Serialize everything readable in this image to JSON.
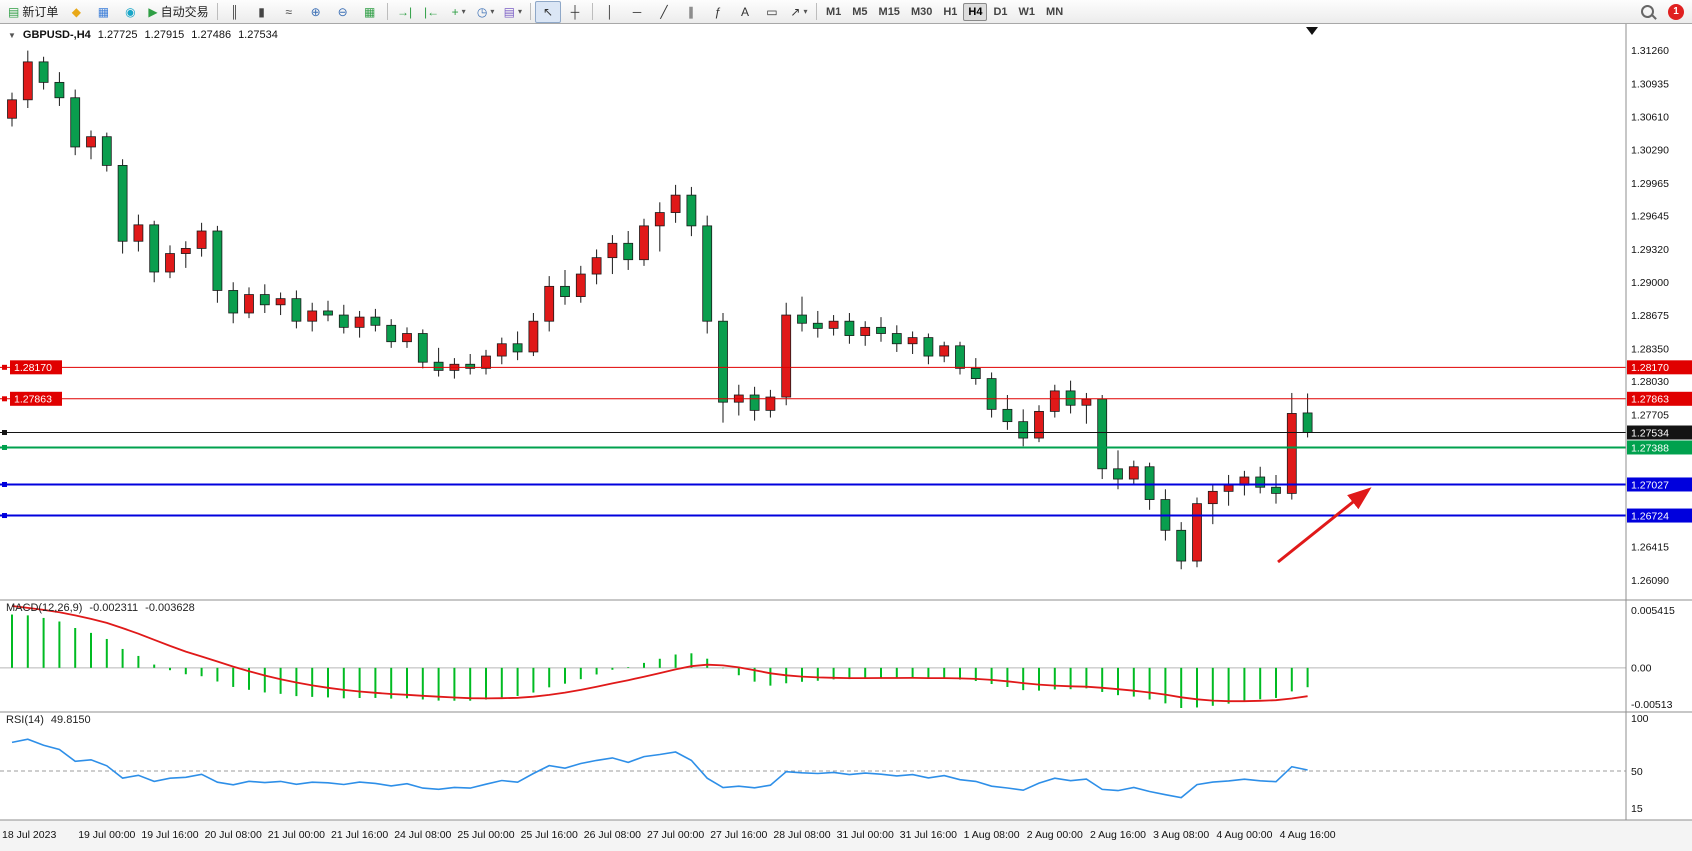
{
  "toolbar": {
    "caret_glyph": "▾",
    "notification_count": "1",
    "active_timeframe": "H4",
    "timeframes": [
      "M1",
      "M5",
      "M15",
      "M30",
      "H1",
      "H4",
      "D1",
      "W1",
      "MN"
    ],
    "items": [
      {
        "t": "b",
        "name": "new-order-button",
        "glyph": "▤",
        "gc": "#2e9e44",
        "label": "新订单"
      },
      {
        "t": "b",
        "name": "market-depth-button",
        "glyph": "◆",
        "gc": "#e8a817"
      },
      {
        "t": "b",
        "name": "charts-window-button",
        "glyph": "▦",
        "gc": "#3b7dd8"
      },
      {
        "t": "b",
        "name": "community-button",
        "glyph": "◉",
        "gc": "#18a6c8"
      },
      {
        "t": "b",
        "name": "autotrading-button",
        "glyph": "▶",
        "gc": "#2e9e44",
        "label": "自动交易"
      },
      {
        "t": "s"
      },
      {
        "t": "b",
        "name": "bars-mode-button",
        "glyph": "║",
        "gc": "#444"
      },
      {
        "t": "b",
        "name": "candles-mode-button",
        "glyph": "▮",
        "gc": "#444"
      },
      {
        "t": "b",
        "name": "line-mode-button",
        "glyph": "≈",
        "gc": "#444"
      },
      {
        "t": "b",
        "name": "zoom-in-button",
        "glyph": "⊕",
        "gc": "#3b6fb5"
      },
      {
        "t": "b",
        "name": "zoom-out-button",
        "glyph": "⊖",
        "gc": "#3b6fb5"
      },
      {
        "t": "b",
        "name": "tile-windows-button",
        "glyph": "▦",
        "gc": "#2e9e44"
      },
      {
        "t": "s"
      },
      {
        "t": "b",
        "name": "auto-scroll-button",
        "glyph": "→|",
        "gc": "#2e9e44"
      },
      {
        "t": "b",
        "name": "chart-shift-button",
        "glyph": "|←",
        "gc": "#2e9e44"
      },
      {
        "t": "b",
        "name": "indicators-button",
        "glyph": "+",
        "gc": "#2e9e44",
        "caret": true
      },
      {
        "t": "b",
        "name": "periods-button",
        "glyph": "◷",
        "gc": "#3b6fb5",
        "caret": true
      },
      {
        "t": "b",
        "name": "templates-button",
        "glyph": "▤",
        "gc": "#7a5cc5",
        "caret": true
      },
      {
        "t": "s"
      },
      {
        "t": "b",
        "name": "cursor-button",
        "glyph": "↖",
        "gc": "#333",
        "active": true
      },
      {
        "t": "b",
        "name": "crosshair-button",
        "glyph": "┼",
        "gc": "#333"
      },
      {
        "t": "s"
      },
      {
        "t": "b",
        "name": "vertical-line-button",
        "glyph": "│",
        "gc": "#333"
      },
      {
        "t": "b",
        "name": "horizontal-line-button",
        "glyph": "─",
        "gc": "#333"
      },
      {
        "t": "b",
        "name": "trendline-button",
        "glyph": "╱",
        "gc": "#333"
      },
      {
        "t": "b",
        "name": "channel-button",
        "glyph": "∥",
        "gc": "#333"
      },
      {
        "t": "b",
        "name": "fibonacci-button",
        "glyph": "ƒ",
        "gc": "#333"
      },
      {
        "t": "b",
        "name": "text-button",
        "glyph": "A",
        "gc": "#333"
      },
      {
        "t": "b",
        "name": "label-button",
        "glyph": "▭",
        "gc": "#333"
      },
      {
        "t": "b",
        "name": "arrows-button",
        "glyph": "↗",
        "gc": "#333",
        "caret": true
      },
      {
        "t": "s"
      }
    ]
  },
  "header": {
    "one_click_icon": "▼",
    "symbol": "GBPUSD-,H4",
    "open": "1.27725",
    "high": "1.27915",
    "low": "1.27486",
    "close": "1.27534"
  },
  "price_axis": {
    "ticks": [
      "1.31260",
      "1.30935",
      "1.30610",
      "1.30290",
      "1.29965",
      "1.29645",
      "1.29320",
      "1.29000",
      "1.28675",
      "1.28350",
      "1.28030",
      "1.27705",
      "1.26415",
      "1.26090"
    ]
  },
  "objects": {
    "hlines": [
      {
        "price": 1.2817,
        "label": "1.28170",
        "color": "#e00000",
        "width": 1,
        "left_badge": true
      },
      {
        "price": 1.27863,
        "label": "1.27863",
        "color": "#e00000",
        "width": 1,
        "left_badge": true
      },
      {
        "price": 1.27534,
        "label": "1.27534",
        "color": "#141414",
        "width": 1,
        "left_badge": false
      },
      {
        "price": 1.27388,
        "label": "1.27388",
        "color": "#00a14e",
        "width": 2,
        "left_badge": false
      },
      {
        "price": 1.27027,
        "label": "1.27027",
        "color": "#0000dd",
        "width": 2,
        "left_badge": false
      },
      {
        "price": 1.26724,
        "label": "1.26724",
        "color": "#0000dd",
        "width": 2,
        "left_badge": false
      }
    ],
    "arrow": {
      "from": [
        1278,
        538
      ],
      "to": [
        1368,
        466
      ],
      "color": "#e01919"
    }
  },
  "macd": {
    "title": "MACD(12,26,9)",
    "value_main": "-0.002311",
    "value_signal": "-0.003628",
    "axis_top": "0.005415",
    "axis_zero": "0.00",
    "axis_bottom": "-0.00513",
    "fast": 12,
    "slow": 26,
    "signal": 9,
    "hist_color": "#00bb22",
    "signal_color": "#e01919"
  },
  "rsi": {
    "title": "RSI(14)",
    "value": "49.8150",
    "period": 14,
    "line_color": "#2e8fe8",
    "level": 50,
    "axis": [
      {
        "v": 100,
        "label": "100"
      },
      {
        "v": 50,
        "label": "50"
      },
      {
        "v": 15,
        "label": "15"
      }
    ]
  },
  "chart_data": {
    "type": "candlestick",
    "symbol": "GBPUSD-",
    "timeframe": "H4",
    "bull_color": "#e01919",
    "bear_color": "#0a9e4e",
    "ohlc_current": {
      "open": 1.27725,
      "high": 1.27915,
      "low": 1.27486,
      "close": 1.27534
    },
    "pre_closes": [
      1.276,
      1.278,
      1.28,
      1.2825,
      1.285,
      1.2875,
      1.29,
      1.2925,
      1.295,
      1.2975,
      1.3,
      1.3025,
      1.305,
      1.308,
      1.31,
      1.312,
      1.3135,
      1.314,
      1.313,
      1.311,
      1.309,
      1.3075,
      1.3065,
      1.306
    ],
    "candles": [
      [
        1.306,
        1.3085,
        1.3052,
        1.3078
      ],
      [
        1.3078,
        1.3126,
        1.307,
        1.3115
      ],
      [
        1.3115,
        1.312,
        1.3088,
        1.3095
      ],
      [
        1.3095,
        1.3105,
        1.3072,
        1.308
      ],
      [
        1.308,
        1.3088,
        1.3024,
        1.3032
      ],
      [
        1.3032,
        1.3048,
        1.302,
        1.3042
      ],
      [
        1.3042,
        1.3046,
        1.3008,
        1.3014
      ],
      [
        1.3014,
        1.302,
        1.2928,
        1.294
      ],
      [
        1.294,
        1.2966,
        1.293,
        1.2956
      ],
      [
        1.2956,
        1.296,
        1.29,
        1.291
      ],
      [
        1.291,
        1.2936,
        1.2904,
        1.2928
      ],
      [
        1.2928,
        1.294,
        1.2914,
        1.2933
      ],
      [
        1.2933,
        1.2958,
        1.2925,
        1.295
      ],
      [
        1.295,
        1.2955,
        1.288,
        1.2892
      ],
      [
        1.2892,
        1.29,
        1.286,
        1.287
      ],
      [
        1.287,
        1.2895,
        1.2865,
        1.2888
      ],
      [
        1.2888,
        1.2898,
        1.287,
        1.2878
      ],
      [
        1.2878,
        1.289,
        1.2868,
        1.2884
      ],
      [
        1.2884,
        1.2892,
        1.2855,
        1.2862
      ],
      [
        1.2862,
        1.288,
        1.2852,
        1.2872
      ],
      [
        1.2872,
        1.2882,
        1.2862,
        1.2868
      ],
      [
        1.2868,
        1.2878,
        1.285,
        1.2856
      ],
      [
        1.2856,
        1.2872,
        1.2846,
        1.2866
      ],
      [
        1.2866,
        1.2874,
        1.2852,
        1.2858
      ],
      [
        1.2858,
        1.2864,
        1.2836,
        1.2842
      ],
      [
        1.2842,
        1.2856,
        1.2836,
        1.285
      ],
      [
        1.285,
        1.2854,
        1.2816,
        1.2822
      ],
      [
        1.2822,
        1.2836,
        1.2808,
        1.2814
      ],
      [
        1.2814,
        1.2826,
        1.2806,
        1.282
      ],
      [
        1.282,
        1.283,
        1.281,
        1.2816
      ],
      [
        1.2816,
        1.2834,
        1.281,
        1.2828
      ],
      [
        1.2828,
        1.2846,
        1.282,
        1.284
      ],
      [
        1.284,
        1.2852,
        1.2824,
        1.2832
      ],
      [
        1.2832,
        1.287,
        1.2828,
        1.2862
      ],
      [
        1.2862,
        1.2906,
        1.2852,
        1.2896
      ],
      [
        1.2896,
        1.2912,
        1.2878,
        1.2886
      ],
      [
        1.2886,
        1.2916,
        1.288,
        1.2908
      ],
      [
        1.2908,
        1.2932,
        1.2898,
        1.2924
      ],
      [
        1.2924,
        1.2946,
        1.2908,
        1.2938
      ],
      [
        1.2938,
        1.295,
        1.2912,
        1.2922
      ],
      [
        1.2922,
        1.2962,
        1.2916,
        1.2955
      ],
      [
        1.2955,
        1.2978,
        1.293,
        1.2968
      ],
      [
        1.2968,
        1.2995,
        1.2958,
        1.2985
      ],
      [
        1.2985,
        1.2993,
        1.2945,
        1.2955
      ],
      [
        1.2955,
        1.2965,
        1.285,
        1.2862
      ],
      [
        1.2862,
        1.287,
        1.2763,
        1.2783
      ],
      [
        1.2783,
        1.28,
        1.277,
        1.279
      ],
      [
        1.279,
        1.2798,
        1.2765,
        1.2775
      ],
      [
        1.2775,
        1.2795,
        1.2768,
        1.2788
      ],
      [
        1.2788,
        1.288,
        1.278,
        1.2868
      ],
      [
        1.2868,
        1.2886,
        1.2852,
        1.286
      ],
      [
        1.286,
        1.2872,
        1.2846,
        1.2855
      ],
      [
        1.2855,
        1.2868,
        1.2848,
        1.2862
      ],
      [
        1.2862,
        1.287,
        1.284,
        1.2848
      ],
      [
        1.2848,
        1.2862,
        1.2838,
        1.2856
      ],
      [
        1.2856,
        1.2866,
        1.2842,
        1.285
      ],
      [
        1.285,
        1.2858,
        1.2832,
        1.284
      ],
      [
        1.284,
        1.2852,
        1.283,
        1.2846
      ],
      [
        1.2846,
        1.285,
        1.282,
        1.2828
      ],
      [
        1.2828,
        1.2842,
        1.2822,
        1.2838
      ],
      [
        1.2838,
        1.2842,
        1.281,
        1.2816
      ],
      [
        1.2816,
        1.2826,
        1.28,
        1.2806
      ],
      [
        1.2806,
        1.2812,
        1.2768,
        1.2776
      ],
      [
        1.2776,
        1.279,
        1.2756,
        1.2764
      ],
      [
        1.2764,
        1.2776,
        1.274,
        1.2748
      ],
      [
        1.2748,
        1.278,
        1.2744,
        1.2774
      ],
      [
        1.2774,
        1.28,
        1.2768,
        1.2794
      ],
      [
        1.2794,
        1.2804,
        1.2772,
        1.278
      ],
      [
        1.278,
        1.2792,
        1.2762,
        1.2786
      ],
      [
        1.2786,
        1.279,
        1.2708,
        1.2718
      ],
      [
        1.2718,
        1.2736,
        1.2698,
        1.2708
      ],
      [
        1.2708,
        1.2726,
        1.2702,
        1.272
      ],
      [
        1.272,
        1.2724,
        1.2678,
        1.2688
      ],
      [
        1.2688,
        1.2698,
        1.2648,
        1.2658
      ],
      [
        1.2658,
        1.2666,
        1.262,
        1.2628
      ],
      [
        1.2628,
        1.269,
        1.2622,
        1.2684
      ],
      [
        1.2684,
        1.2702,
        1.2664,
        1.2696
      ],
      [
        1.2696,
        1.2712,
        1.2682,
        1.2702
      ],
      [
        1.2702,
        1.2716,
        1.2692,
        1.271
      ],
      [
        1.271,
        1.272,
        1.2694,
        1.27
      ],
      [
        1.27,
        1.2712,
        1.2684,
        1.2694
      ],
      [
        1.2694,
        1.2792,
        1.2688,
        1.2772
      ],
      [
        1.27725,
        1.27915,
        1.27486,
        1.27534
      ]
    ],
    "time_labels": [
      {
        "text": "18 Jul 2023",
        "i": 0
      },
      {
        "text": "19 Jul 00:00",
        "i": 6
      },
      {
        "text": "19 Jul 16:00",
        "i": 10
      },
      {
        "text": "20 Jul 08:00",
        "i": 14
      },
      {
        "text": "21 Jul 00:00",
        "i": 18
      },
      {
        "text": "21 Jul 16:00",
        "i": 22
      },
      {
        "text": "24 Jul 08:00",
        "i": 26
      },
      {
        "text": "25 Jul 00:00",
        "i": 30
      },
      {
        "text": "25 Jul 16:00",
        "i": 34
      },
      {
        "text": "26 Jul 08:00",
        "i": 38
      },
      {
        "text": "27 Jul 00:00",
        "i": 42
      },
      {
        "text": "27 Jul 16:00",
        "i": 46
      },
      {
        "text": "28 Jul 08:00",
        "i": 50
      },
      {
        "text": "31 Jul 00:00",
        "i": 54
      },
      {
        "text": "31 Jul 16:00",
        "i": 58
      },
      {
        "text": "1 Aug 08:00",
        "i": 62
      },
      {
        "text": "2 Aug 00:00",
        "i": 66
      },
      {
        "text": "2 Aug 16:00",
        "i": 70
      },
      {
        "text": "3 Aug 08:00",
        "i": 74
      },
      {
        "text": "4 Aug 00:00",
        "i": 78
      },
      {
        "text": "4 Aug 16:00",
        "i": 82
      }
    ]
  }
}
